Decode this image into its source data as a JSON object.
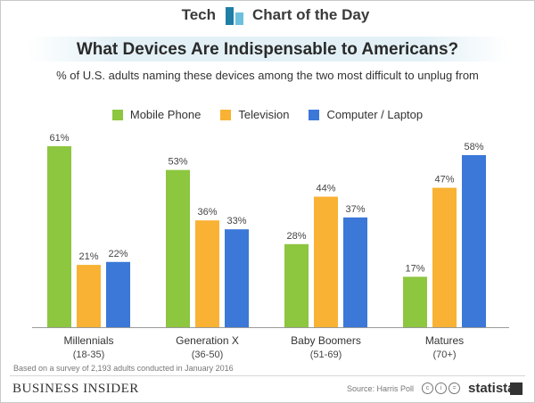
{
  "header": {
    "left_label": "Tech",
    "right_label": "Chart of the Day",
    "logo_icon": "bar-chart-icon"
  },
  "chart_data": {
    "type": "bar",
    "title": "What Devices Are Indispensable to Americans?",
    "subtitle": "% of U.S. adults naming these devices among the two most difficult to unplug from",
    "categories": [
      {
        "name": "Millennials",
        "range": "(18-35)"
      },
      {
        "name": "Generation X",
        "range": "(36-50)"
      },
      {
        "name": "Baby Boomers",
        "range": "(51-69)"
      },
      {
        "name": "Matures",
        "range": "(70+)"
      }
    ],
    "series": [
      {
        "name": "Mobile Phone",
        "color": "#8dc63f",
        "values": [
          61,
          53,
          28,
          17
        ]
      },
      {
        "name": "Television",
        "color": "#f9b233",
        "values": [
          21,
          36,
          44,
          47
        ]
      },
      {
        "name": "Computer / Laptop",
        "color": "#3b78d8",
        "values": [
          22,
          33,
          37,
          58
        ]
      }
    ],
    "value_suffix": "%",
    "ylim": [
      0,
      61
    ],
    "grid": false,
    "legend_position": "top-center"
  },
  "footer": {
    "note": "Based on a survey of 2,193 adults conducted in January 2016",
    "brand": "BUSINESS INSIDER",
    "source": "Source: Harris Poll",
    "license_icons": [
      "cc-icon",
      "by-icon",
      "nd-icon"
    ],
    "statista_label": "statista",
    "statista_icon": "statista-logo-icon"
  }
}
